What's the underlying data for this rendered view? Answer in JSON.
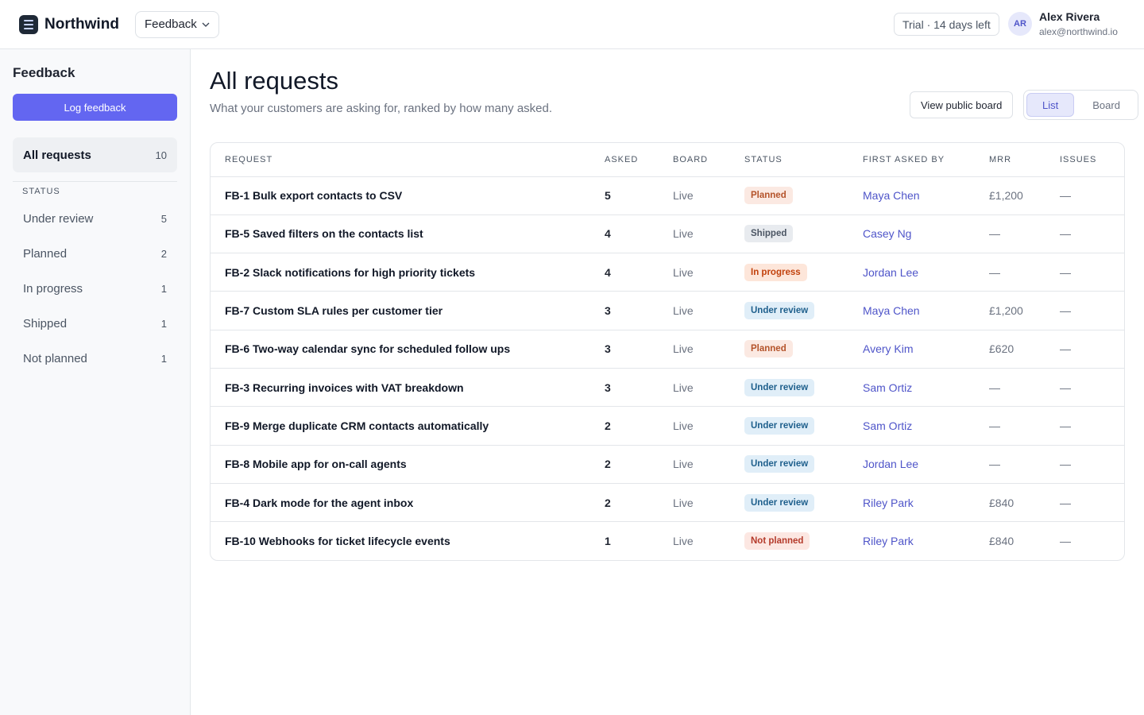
{
  "header": {
    "brand": "Northwind",
    "product_switcher": "Feedback",
    "trial": "Trial · 14 days left",
    "user": {
      "initials": "AR",
      "name": "Alex Rivera",
      "email": "alex@northwind.io"
    }
  },
  "sidebar": {
    "title": "Feedback",
    "button": "Log feedback",
    "all": {
      "label": "All requests",
      "count": 10
    },
    "section": "STATUS",
    "statuses": [
      {
        "label": "Under review",
        "count": 5
      },
      {
        "label": "Planned",
        "count": 2
      },
      {
        "label": "In progress",
        "count": 1
      },
      {
        "label": "Shipped",
        "count": 1
      },
      {
        "label": "Not planned",
        "count": 1
      }
    ]
  },
  "main": {
    "title": "All requests",
    "subtitle": "What your customers are asking for, ranked by how many asked.",
    "public_board": "View public board",
    "views": [
      "List",
      "Board"
    ]
  },
  "table": {
    "columns": [
      "REQUEST",
      "ASKED",
      "BOARD",
      "STATUS",
      "FIRST ASKED BY",
      "MRR",
      "ISSUES"
    ],
    "rows": [
      {
        "request": "FB-1 Bulk export contacts to CSV",
        "asked": 5,
        "board": "Live",
        "status": "Planned",
        "status_color": "#b4532a",
        "status_bg": "#fbe9e2",
        "first_asked_by": "Maya Chen",
        "mrr": "£1,200",
        "issues": "—"
      },
      {
        "request": "FB-5 Saved filters on the contacts list",
        "asked": 4,
        "board": "Live",
        "status": "Shipped",
        "status_color": "#4b5563",
        "status_bg": "#e8ebef",
        "first_asked_by": "Casey Ng",
        "mrr": "—",
        "issues": "—"
      },
      {
        "request": "FB-2 Slack notifications for high priority tickets",
        "asked": 4,
        "board": "Live",
        "status": "In progress",
        "status_color": "#c2410c",
        "status_bg": "#fde6da",
        "first_asked_by": "Jordan Lee",
        "mrr": "—",
        "issues": "—"
      },
      {
        "request": "FB-7 Custom SLA rules per customer tier",
        "asked": 3,
        "board": "Live",
        "status": "Under review",
        "status_color": "#1e5f8c",
        "status_bg": "#e0eef8",
        "first_asked_by": "Maya Chen",
        "mrr": "£1,200",
        "issues": "—"
      },
      {
        "request": "FB-6 Two-way calendar sync for scheduled follow ups",
        "asked": 3,
        "board": "Live",
        "status": "Planned",
        "status_color": "#b4532a",
        "status_bg": "#fbe9e2",
        "first_asked_by": "Avery Kim",
        "mrr": "£620",
        "issues": "—"
      },
      {
        "request": "FB-3 Recurring invoices with VAT breakdown",
        "asked": 3,
        "board": "Live",
        "status": "Under review",
        "status_color": "#1e5f8c",
        "status_bg": "#e0eef8",
        "first_asked_by": "Sam Ortiz",
        "mrr": "—",
        "issues": "—"
      },
      {
        "request": "FB-9 Merge duplicate CRM contacts automatically",
        "asked": 2,
        "board": "Live",
        "status": "Under review",
        "status_color": "#1e5f8c",
        "status_bg": "#e0eef8",
        "first_asked_by": "Sam Ortiz",
        "mrr": "—",
        "issues": "—"
      },
      {
        "request": "FB-8 Mobile app for on-call agents",
        "asked": 2,
        "board": "Live",
        "status": "Under review",
        "status_color": "#1e5f8c",
        "status_bg": "#e0eef8",
        "first_asked_by": "Jordan Lee",
        "mrr": "—",
        "issues": "—"
      },
      {
        "request": "FB-4 Dark mode for the agent inbox",
        "asked": 2,
        "board": "Live",
        "status": "Under review",
        "status_color": "#1e5f8c",
        "status_bg": "#e0eef8",
        "first_asked_by": "Riley Park",
        "mrr": "£840",
        "issues": "—"
      },
      {
        "request": "FB-10 Webhooks for ticket lifecycle events",
        "asked": 1,
        "board": "Live",
        "status": "Not planned",
        "status_color": "#b43a2b",
        "status_bg": "#fce7e2",
        "first_asked_by": "Riley Park",
        "mrr": "£840",
        "issues": "—"
      }
    ]
  }
}
